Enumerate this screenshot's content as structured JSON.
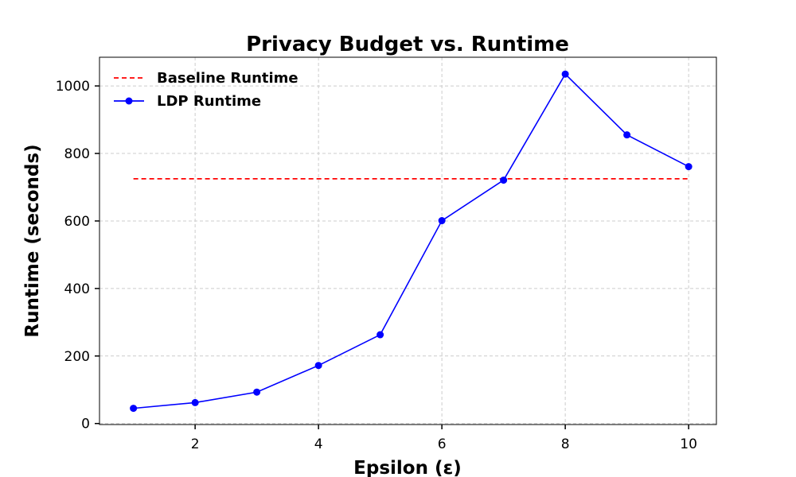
{
  "chart_data": {
    "type": "line",
    "title": "Privacy Budget vs. Runtime",
    "xlabel": "Epsilon (ε)",
    "ylabel": "Runtime (seconds)",
    "x": [
      1,
      2,
      3,
      4,
      5,
      6,
      7,
      8,
      9,
      10
    ],
    "xlim": [
      0.45,
      10.45
    ],
    "ylim": [
      -3,
      1085
    ],
    "xticks": [
      2,
      4,
      6,
      8,
      10
    ],
    "yticks": [
      0,
      200,
      400,
      600,
      800,
      1000
    ],
    "xtick_labels": [
      "2",
      "4",
      "6",
      "8",
      "10"
    ],
    "ytick_labels": [
      "0",
      "200",
      "400",
      "600",
      "800",
      "1000"
    ],
    "grid": true,
    "legend_position": "top-left",
    "series": [
      {
        "name": "Baseline Runtime",
        "style": "dashed",
        "color": "#ff0000",
        "values": [
          725,
          725,
          725,
          725,
          725,
          725,
          725,
          725,
          725,
          725
        ]
      },
      {
        "name": "LDP Runtime",
        "style": "solid-markers",
        "color": "#0000ff",
        "values": [
          45,
          62,
          93,
          172,
          263,
          601,
          721,
          1035,
          855,
          761
        ]
      }
    ]
  }
}
